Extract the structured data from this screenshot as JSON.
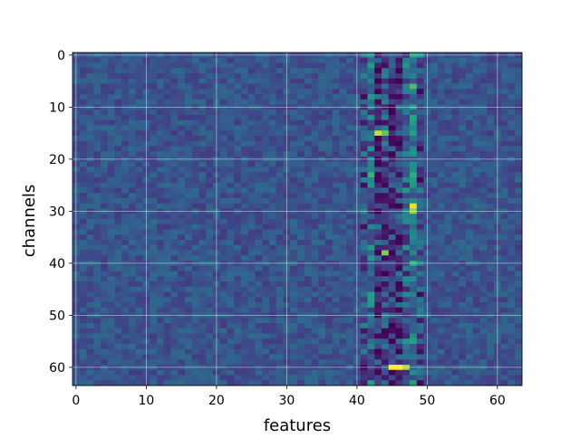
{
  "chart_data": {
    "type": "heatmap",
    "title": "",
    "xlabel": "features",
    "ylabel": "channels",
    "n_rows": 64,
    "n_cols": 64,
    "colormap": "viridis",
    "value_range": [
      0,
      1
    ],
    "xlim": [
      -0.5,
      63.5
    ],
    "ylim": [
      63.5,
      -0.5
    ],
    "x_ticks": [
      0,
      10,
      20,
      30,
      40,
      50,
      60
    ],
    "y_ticks": [
      0,
      10,
      20,
      30,
      40,
      50,
      60
    ],
    "grid": true,
    "baseline_level": 0.33,
    "noise_amplitude": 0.11,
    "column_profile": {
      "41": 0.3,
      "42": 0.45,
      "43": 0.22,
      "44": 0.28,
      "45": 0.18,
      "46": 0.22,
      "47": 0.38,
      "48": 0.55,
      "49": 0.3
    },
    "highlights": [
      {
        "row": 15,
        "col": 43,
        "value": 0.95
      },
      {
        "row": 15,
        "col": 44,
        "value": 0.85
      },
      {
        "row": 23,
        "col": 42,
        "value": 0.78
      },
      {
        "row": 29,
        "col": 48,
        "value": 0.98
      },
      {
        "row": 30,
        "col": 48,
        "value": 0.9
      },
      {
        "row": 38,
        "col": 44,
        "value": 0.88
      },
      {
        "row": 60,
        "col": 45,
        "value": 1.0
      },
      {
        "row": 60,
        "col": 46,
        "value": 1.0
      },
      {
        "row": 60,
        "col": 47,
        "value": 0.92
      },
      {
        "row": 0,
        "col": 48,
        "value": 0.72
      },
      {
        "row": 0,
        "col": 49,
        "value": 0.68
      },
      {
        "row": 12,
        "col": 48,
        "value": 0.75
      },
      {
        "row": 26,
        "col": 47,
        "value": 0.7
      },
      {
        "row": 55,
        "col": 48,
        "value": 0.72
      },
      {
        "row": 25,
        "col": 44,
        "value": 0.02
      },
      {
        "row": 45,
        "col": 46,
        "value": 0.03
      },
      {
        "row": 8,
        "col": 45,
        "value": 0.04
      },
      {
        "row": 34,
        "col": 45,
        "value": 0.05
      }
    ]
  }
}
